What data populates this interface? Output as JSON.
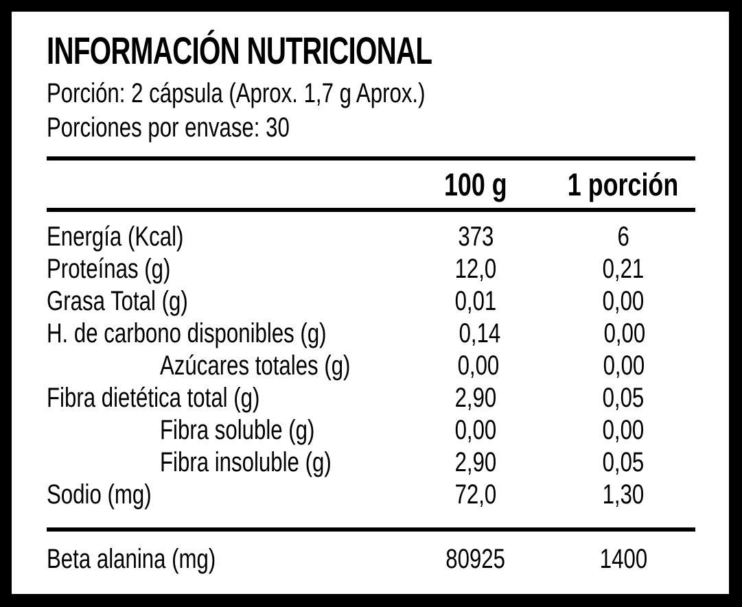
{
  "colors": {
    "frame": "#000000",
    "paper": "#ffffff",
    "ink": "#000000"
  },
  "header": {
    "title": "INFORMACIÓN NUTRICIONAL",
    "serving_line": "Porción: 2 cápsula (Aprox. 1,7 g Aprox.)",
    "servings_per_container_line": "Porciones por envase: 30"
  },
  "table": {
    "columns": [
      "100 g",
      "1 porción"
    ],
    "rows": [
      {
        "name": "Energía (Kcal)",
        "indent": false,
        "per_100g": "373",
        "per_portion": "6"
      },
      {
        "name": "Proteínas (g)",
        "indent": false,
        "per_100g": "12,0",
        "per_portion": "0,21"
      },
      {
        "name": "Grasa Total (g)",
        "indent": false,
        "per_100g": "0,01",
        "per_portion": "0,00"
      },
      {
        "name": "H. de carbono disponibles (g)",
        "indent": false,
        "per_100g": "0,14",
        "per_portion": "0,00"
      },
      {
        "name": "Azúcares totales (g)",
        "indent": true,
        "per_100g": "0,00",
        "per_portion": "0,00"
      },
      {
        "name": "Fibra dietética total (g)",
        "indent": false,
        "per_100g": "2,90",
        "per_portion": "0,05"
      },
      {
        "name": "Fibra soluble (g)",
        "indent": true,
        "per_100g": "0,00",
        "per_portion": "0,00"
      },
      {
        "name": "Fibra insoluble (g)",
        "indent": true,
        "per_100g": "2,90",
        "per_portion": "0,05"
      },
      {
        "name": "Sodio (mg)",
        "indent": false,
        "per_100g": "72,0",
        "per_portion": "1,30"
      }
    ],
    "footer_row": {
      "name": "Beta alanina (mg)",
      "per_100g": "80925",
      "per_portion": "1400"
    }
  }
}
